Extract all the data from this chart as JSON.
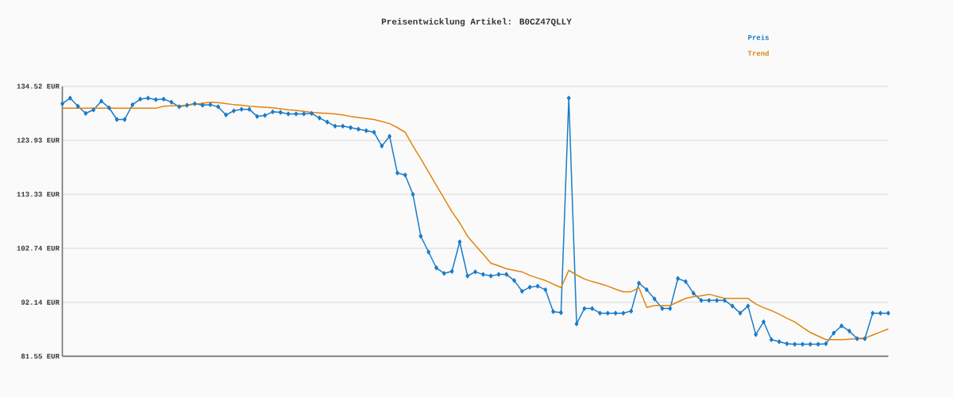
{
  "chart_data": {
    "type": "line",
    "title": "Preisentwicklung Artikel: B0CZ47QLLY",
    "categories": [
      null,
      null,
      null,
      null,
      null,
      null,
      null,
      null,
      null,
      null,
      null,
      null,
      null,
      null,
      null,
      null,
      null,
      null,
      null,
      null,
      null,
      null,
      null,
      null,
      null,
      null,
      null,
      null,
      null,
      null,
      null,
      null,
      null,
      null,
      null,
      null,
      null,
      null,
      null,
      null,
      null,
      null,
      null,
      null,
      null,
      null,
      null,
      null,
      null,
      null,
      null,
      null,
      null,
      null,
      null,
      null,
      null,
      null,
      null,
      null,
      null,
      null,
      null,
      null,
      null,
      null,
      null,
      null,
      null,
      null,
      null,
      null,
      null,
      null,
      null,
      null,
      null,
      null,
      null,
      null,
      null,
      null,
      null,
      null,
      null,
      null,
      null,
      null,
      null,
      null,
      null,
      null,
      null,
      null,
      null,
      null,
      null,
      null,
      null,
      null,
      null,
      null,
      null,
      null,
      null,
      null,
      null
    ],
    "series": [
      {
        "name": "Preis",
        "color": "#1a7cc8",
        "marker": "diamond",
        "values": [
          131.1,
          132.2,
          130.6,
          129.2,
          129.9,
          131.6,
          130.3,
          128.0,
          128.0,
          130.9,
          132.0,
          132.2,
          131.9,
          132.0,
          131.4,
          130.5,
          130.8,
          131.1,
          130.8,
          130.9,
          130.5,
          128.9,
          129.7,
          130.0,
          130.0,
          128.6,
          128.8,
          129.5,
          129.4,
          129.1,
          129.1,
          129.1,
          129.2,
          128.3,
          127.5,
          126.7,
          126.7,
          126.4,
          126.1,
          125.8,
          125.5,
          122.8,
          124.7,
          117.5,
          117.1,
          113.3,
          105.1,
          102.0,
          98.9,
          97.8,
          98.2,
          104.0,
          97.3,
          98.1,
          97.6,
          97.3,
          97.6,
          97.6,
          96.4,
          94.3,
          95.1,
          95.3,
          94.6,
          90.3,
          90.1,
          132.2,
          87.9,
          90.9,
          90.9,
          90.0,
          90.0,
          90.0,
          90.0,
          90.4,
          95.9,
          94.6,
          92.8,
          90.9,
          90.9,
          96.8,
          96.2,
          93.9,
          92.5,
          92.5,
          92.5,
          92.5,
          91.4,
          90.0,
          91.4,
          85.8,
          88.3,
          84.8,
          84.4,
          84.0,
          83.9,
          83.9,
          83.9,
          83.9,
          84.0,
          86.1,
          87.5,
          86.5,
          85.0,
          85.0,
          90.0,
          90.0,
          90.0
        ]
      },
      {
        "name": "Trend",
        "color": "#e3830e",
        "marker": "none",
        "values": [
          130.2,
          130.2,
          130.2,
          130.2,
          130.2,
          130.2,
          130.2,
          130.2,
          130.2,
          130.2,
          130.2,
          130.2,
          130.2,
          130.6,
          130.7,
          130.7,
          130.8,
          131.0,
          131.2,
          131.4,
          131.3,
          131.1,
          130.9,
          130.8,
          130.6,
          130.5,
          130.4,
          130.3,
          130.1,
          129.9,
          129.8,
          129.6,
          129.4,
          129.3,
          129.2,
          129.1,
          128.9,
          128.6,
          128.4,
          128.2,
          128.0,
          127.6,
          127.2,
          126.4,
          125.5,
          122.8,
          120.3,
          117.7,
          115.1,
          112.5,
          109.9,
          107.7,
          105.1,
          103.3,
          101.6,
          99.8,
          99.3,
          98.7,
          98.4,
          98.1,
          97.4,
          96.9,
          96.4,
          95.7,
          95.0,
          98.4,
          97.5,
          96.7,
          96.2,
          95.8,
          95.3,
          94.7,
          94.2,
          94.2,
          95.0,
          91.1,
          91.5,
          91.5,
          91.5,
          92.2,
          92.9,
          93.2,
          93.4,
          93.7,
          93.3,
          92.9,
          92.9,
          92.9,
          92.9,
          91.8,
          91.1,
          90.5,
          89.8,
          89.0,
          88.3,
          87.2,
          86.2,
          85.5,
          84.8,
          84.8,
          84.8,
          84.9,
          85.0,
          85.1,
          85.7,
          86.3,
          86.9
        ]
      }
    ],
    "ylim": [
      81.55,
      134.52
    ],
    "yticks": [
      {
        "value": 81.55,
        "label": "81.55 EUR"
      },
      {
        "value": 92.14,
        "label": "92.14 EUR"
      },
      {
        "value": 102.74,
        "label": "102.74 EUR"
      },
      {
        "value": 113.33,
        "label": "113.33 EUR"
      },
      {
        "value": 123.93,
        "label": "123.93 EUR"
      },
      {
        "value": 134.52,
        "label": "134.52 EUR"
      }
    ],
    "grid": "y",
    "legend": "top right",
    "tick_labels": "y"
  }
}
